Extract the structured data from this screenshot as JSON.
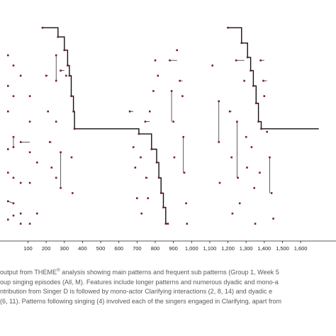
{
  "chart_data": {
    "type": "scatter",
    "title": "",
    "xlabel": "",
    "ylabel": "",
    "xlim": [
      -15,
      1740
    ],
    "ylim": [
      0,
      20
    ],
    "x_ticks": [
      "100",
      "200",
      "300",
      "400",
      "500",
      "600",
      "700",
      "800",
      "900",
      "1,000",
      "1,100",
      "1,200",
      "1,300",
      "1,400",
      "1,500",
      "1,600"
    ],
    "x_tick_values": [
      100,
      200,
      300,
      400,
      500,
      600,
      700,
      800,
      900,
      1000,
      1100,
      1200,
      1300,
      1400,
      1500,
      1600
    ],
    "grid": false,
    "main_pattern_path": [
      [
        180,
        20.2
      ],
      [
        265,
        20.2
      ],
      [
        265,
        19.3
      ],
      [
        300,
        19.3
      ],
      [
        300,
        18.0
      ],
      [
        318,
        18.0
      ],
      [
        318,
        16.5
      ],
      [
        328,
        16.5
      ],
      [
        328,
        15.5
      ],
      [
        338,
        15.5
      ],
      [
        338,
        13.5
      ],
      [
        350,
        13.5
      ],
      [
        350,
        12.0
      ],
      [
        356,
        12.0
      ],
      [
        356,
        10.3
      ],
      [
        710,
        10.3
      ],
      [
        710,
        9.8
      ],
      [
        780,
        9.8
      ],
      [
        780,
        8.3
      ],
      [
        808,
        8.3
      ],
      [
        808,
        7.0
      ],
      [
        820,
        7.0
      ],
      [
        820,
        5.5
      ],
      [
        832,
        5.5
      ],
      [
        832,
        4.0
      ],
      [
        845,
        4.0
      ],
      [
        845,
        2.6
      ],
      [
        858,
        2.6
      ],
      [
        858,
        1.0
      ],
      [
        870,
        1.0
      ],
      [
        null,
        null
      ],
      [
        1200,
        20.2
      ],
      [
        1275,
        20.2
      ],
      [
        1275,
        18.7
      ],
      [
        1308,
        18.7
      ],
      [
        1308,
        17.3
      ],
      [
        1325,
        17.3
      ],
      [
        1325,
        16.0
      ],
      [
        1340,
        16.0
      ],
      [
        1340,
        14.5
      ],
      [
        1355,
        14.5
      ],
      [
        1355,
        12.8
      ],
      [
        1368,
        12.8
      ],
      [
        1368,
        11.0
      ],
      [
        1383,
        11.0
      ],
      [
        1383,
        10.3
      ],
      [
        1700,
        10.3
      ]
    ],
    "series": [
      {
        "points": [
          [
            -10,
            17.5
          ],
          [
            -10,
            14.5
          ],
          [
            -10,
            12.0
          ],
          [
            -10,
            8.3
          ],
          [
            -10,
            6.0
          ],
          [
            -10,
            3.2
          ],
          [
            -10,
            1.4
          ],
          [
            20,
            16.5
          ],
          [
            20,
            13.5
          ],
          [
            20,
            9.5
          ],
          [
            20,
            8.5
          ],
          [
            20,
            5.5
          ],
          [
            20,
            3.0
          ],
          [
            20,
            1.8
          ],
          [
            60,
            15.5
          ],
          [
            60,
            9.0
          ],
          [
            60,
            5.0
          ],
          [
            60,
            2.0
          ],
          [
            60,
            1.0
          ],
          [
            110,
            13.5
          ],
          [
            110,
            11.0
          ],
          [
            110,
            8.0
          ],
          [
            110,
            5.0
          ],
          [
            110,
            1.0
          ],
          [
            150,
            7.0
          ],
          [
            150,
            2.0
          ],
          [
            180,
            20.2
          ],
          [
            200,
            15.5
          ],
          [
            210,
            12.0
          ],
          [
            220,
            9.0
          ],
          [
            230,
            6.5
          ],
          [
            255,
            17.5
          ],
          [
            255,
            15.0
          ],
          [
            255,
            11.0
          ],
          [
            255,
            5.5
          ],
          [
            265,
            19.3
          ],
          [
            280,
            16.0
          ],
          [
            280,
            8.0
          ],
          [
            280,
            4.5
          ],
          [
            300,
            18.0
          ],
          [
            310,
            15.5
          ],
          [
            318,
            16.5
          ],
          [
            328,
            15.5
          ],
          [
            338,
            13.5
          ],
          [
            350,
            12.0
          ],
          [
            356,
            10.3
          ],
          [
            340,
            7.5
          ],
          [
            345,
            4.0
          ],
          [
            660,
            12.0
          ],
          [
            680,
            8.5
          ],
          [
            690,
            6.5
          ],
          [
            700,
            3.5
          ],
          [
            710,
            9.8
          ],
          [
            720,
            7.5
          ],
          [
            725,
            2.0
          ],
          [
            745,
            11.0
          ],
          [
            750,
            5.5
          ],
          [
            760,
            3.5
          ],
          [
            770,
            12.0
          ],
          [
            780,
            8.3
          ],
          [
            790,
            14.0
          ],
          [
            800,
            17.0
          ],
          [
            808,
            7.0
          ],
          [
            815,
            15.5
          ],
          [
            820,
            5.5
          ],
          [
            832,
            4.0
          ],
          [
            845,
            2.6
          ],
          [
            858,
            1.0
          ],
          [
            870,
            1.0
          ],
          [
            880,
            17.0
          ],
          [
            890,
            14.0
          ],
          [
            900,
            11.0
          ],
          [
            905,
            7.5
          ],
          [
            920,
            18.0
          ],
          [
            935,
            15.0
          ],
          [
            950,
            13.5
          ],
          [
            955,
            9.5
          ],
          [
            960,
            6.0
          ],
          [
            970,
            3.0
          ],
          [
            975,
            1.0
          ],
          [
            1115,
            16.5
          ],
          [
            1150,
            13.0
          ],
          [
            1150,
            9.0
          ],
          [
            1155,
            5.0
          ],
          [
            1200,
            20.2
          ],
          [
            1210,
            12.0
          ],
          [
            1220,
            7.5
          ],
          [
            1225,
            2.0
          ],
          [
            1245,
            17.0
          ],
          [
            1250,
            11.0
          ],
          [
            1255,
            5.5
          ],
          [
            1265,
            3.0
          ],
          [
            1275,
            18.7
          ],
          [
            1290,
            15.0
          ],
          [
            1300,
            9.5
          ],
          [
            1305,
            6.5
          ],
          [
            1308,
            17.3
          ],
          [
            1325,
            16.0
          ],
          [
            1340,
            14.5
          ],
          [
            1355,
            12.8
          ],
          [
            1368,
            11.0
          ],
          [
            1383,
            10.3
          ],
          [
            1330,
            8.5
          ],
          [
            1345,
            4.5
          ],
          [
            1350,
            1.0
          ],
          [
            1375,
            6.0
          ],
          [
            1380,
            17.0
          ],
          [
            1395,
            15.0
          ],
          [
            1400,
            13.5
          ],
          [
            1415,
            10.0
          ],
          [
            1430,
            7.5
          ],
          [
            1440,
            4.0
          ],
          [
            1450,
            1.5
          ]
        ]
      }
    ],
    "dyadic_links": [
      [
        255,
        17.5,
        255,
        15.0
      ],
      [
        280,
        16.0,
        300,
        16.0
      ],
      [
        280,
        8.0,
        280,
        4.5
      ],
      [
        660,
        12.0,
        680,
        12.0
      ],
      [
        745,
        11.0,
        770,
        11.0
      ],
      [
        750,
        5.5,
        760,
        5.5
      ],
      [
        880,
        17.0,
        920,
        17.0
      ],
      [
        890,
        14.0,
        890,
        11.0
      ],
      [
        935,
        15.0,
        950,
        15.0
      ],
      [
        955,
        9.5,
        955,
        6.0
      ],
      [
        1150,
        13.0,
        1150,
        9.0
      ],
      [
        1245,
        17.0,
        1290,
        17.0
      ],
      [
        1250,
        11.0,
        1250,
        5.5
      ],
      [
        1380,
        17.0,
        1400,
        17.0
      ],
      [
        1395,
        15.0,
        1415,
        15.0
      ],
      [
        1430,
        7.5,
        1430,
        4.0
      ],
      [
        20,
        9.5,
        20,
        8.5
      ],
      [
        60,
        9.0,
        110,
        9.0
      ],
      [
        -10,
        3.2,
        20,
        3.0
      ],
      [
        200,
        15.5,
        210,
        15.5
      ],
      [
        220,
        9.0,
        230,
        9.0
      ],
      [
        1210,
        12.0,
        1220,
        12.0
      ]
    ]
  },
  "caption": {
    "line1_a": "output from THEME",
    "line1_reg": "®",
    "line1_b": " analysis showing main patterns and frequent sub patterns (Group 1, Week 5",
    "line2": "oup singing episodes (All, M). Features include longer patterns and numerous dyadic and mono-a",
    "line3": "ntribution from Singer D is followed by mono-actor Clarifying interactions (2, 8, 14) and dyadic e",
    "line4": "(6, 11). Patterns following singing (4) involved each of the singers engaged in Clarifying, apart from"
  }
}
